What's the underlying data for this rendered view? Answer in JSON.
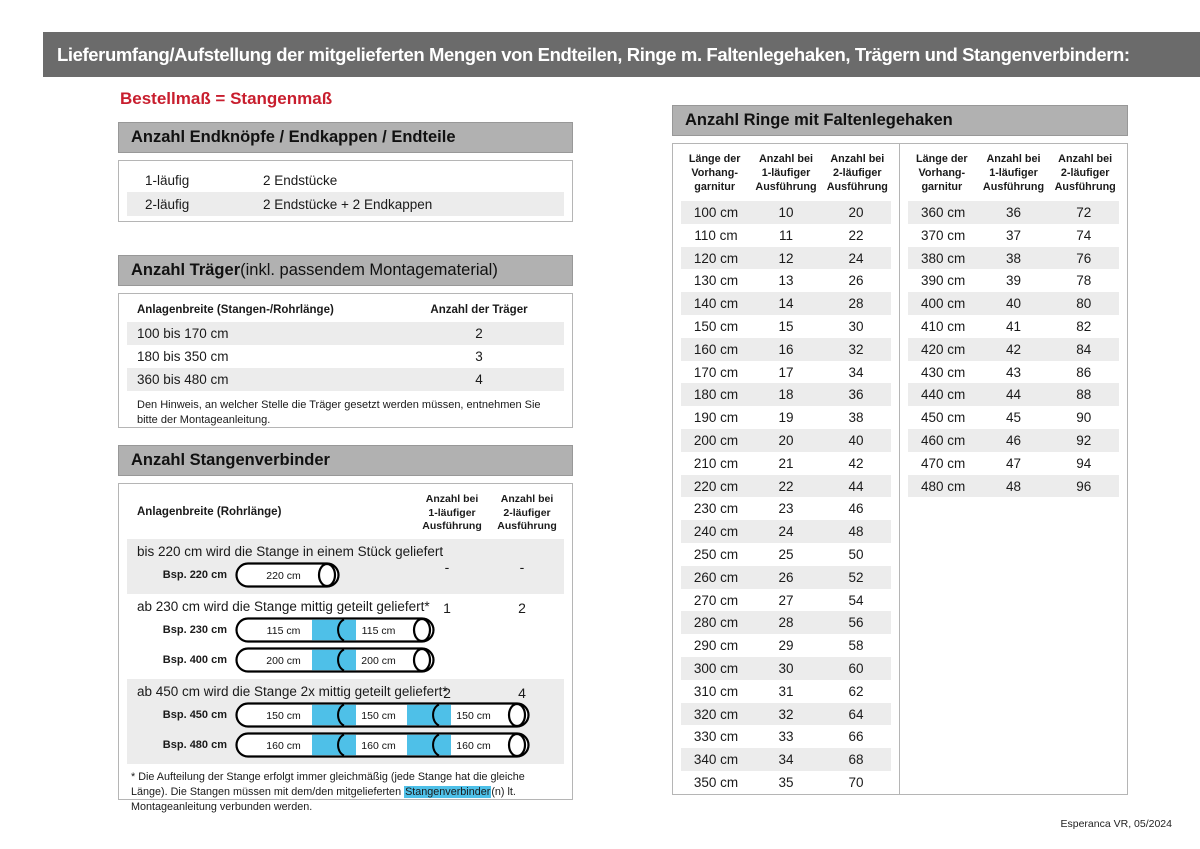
{
  "header": {
    "title": "Lieferumfang/Aufstellung der mitgelieferten Mengen von Endteilen, Ringe m. Faltenlegehaken, Trägern und Stangenverbindern:"
  },
  "subtitle": "Bestellmaß = Stangenmaß",
  "colors": {
    "topbar_gray": "#6b6b6b",
    "section_bar_gray": "#b1b1b1",
    "row_shading": "#ececec",
    "accent_red": "#c81e2e",
    "connector_blue": "#4ec0e8"
  },
  "end_pieces": {
    "title": "Anzahl Endknöpfe / Endkappen / Endteile",
    "rows": [
      {
        "label": "1-läufig",
        "value": "2 Endstücke"
      },
      {
        "label": "2-läufig",
        "value": "2 Endstücke + 2 Endkappen"
      }
    ]
  },
  "traeger": {
    "title_bold": "Anzahl Träger",
    "title_rest": " (inkl. passendem Montagematerial)",
    "col1": "Anlagenbreite (Stangen-/Rohrlänge)",
    "col2": "Anzahl der Träger",
    "rows": [
      {
        "range": "100 bis 170 cm",
        "count": "2"
      },
      {
        "range": "180 bis 350 cm",
        "count": "3"
      },
      {
        "range": "360 bis 480 cm",
        "count": "4"
      }
    ],
    "note": "Den Hinweis, an welcher Stelle die Träger gesetzt werden müssen, entnehmen Sie bitte der Montageanleitung."
  },
  "verbinder": {
    "title": "Anzahl Stangenverbinder",
    "col1": "Anlagenbreite (Rohrlänge)",
    "col_1l": [
      "Anzahl bei",
      "1-läufiger",
      "Ausführung"
    ],
    "col_2l": [
      "Anzahl bei",
      "2-läufiger",
      "Ausführung"
    ],
    "rows": [
      {
        "text": "bis 220 cm wird die Stange in einem Stück geliefert",
        "v1": "-",
        "v2": "-",
        "diagrams": [
          {
            "label": "Bsp. 220 cm",
            "segments": [
              "220 cm"
            ]
          }
        ]
      },
      {
        "text": "ab 230 cm wird die Stange mittig geteilt geliefert*",
        "v1": "1",
        "v2": "2",
        "diagrams": [
          {
            "label": "Bsp. 230 cm",
            "segments": [
              "115 cm",
              "115 cm"
            ]
          },
          {
            "label": "Bsp. 400 cm",
            "segments": [
              "200 cm",
              "200 cm"
            ]
          }
        ]
      },
      {
        "text": "ab 450 cm wird die Stange 2x mittig geteilt geliefert*",
        "v1": "2",
        "v2": "4",
        "diagrams": [
          {
            "label": "Bsp. 450 cm",
            "segments": [
              "150 cm",
              "150 cm",
              "150 cm"
            ]
          },
          {
            "label": "Bsp. 480 cm",
            "segments": [
              "160 cm",
              "160 cm",
              "160 cm"
            ]
          }
        ]
      }
    ],
    "footnote_parts": [
      "* Die Aufteilung der Stange erfolgt immer gleichmäßig (jede Stange hat die gleiche Länge). Die Stangen müssen mit dem/den mitgelieferten ",
      "Stangenverbinder",
      "(n) lt. Montageanleitung verbunden werden."
    ]
  },
  "ringe": {
    "title": "Anzahl Ringe mit Faltenlegehaken",
    "col_headers": [
      [
        "Länge der",
        "Vorhang-",
        "garnitur"
      ],
      [
        "Anzahl bei",
        "1-läufiger",
        "Ausführung"
      ],
      [
        "Anzahl bei",
        "2-läufiger",
        "Ausführung"
      ]
    ],
    "left_rows": [
      [
        "100 cm",
        "10",
        "20"
      ],
      [
        "110 cm",
        "11",
        "22"
      ],
      [
        "120 cm",
        "12",
        "24"
      ],
      [
        "130 cm",
        "13",
        "26"
      ],
      [
        "140 cm",
        "14",
        "28"
      ],
      [
        "150 cm",
        "15",
        "30"
      ],
      [
        "160 cm",
        "16",
        "32"
      ],
      [
        "170 cm",
        "17",
        "34"
      ],
      [
        "180 cm",
        "18",
        "36"
      ],
      [
        "190 cm",
        "19",
        "38"
      ],
      [
        "200 cm",
        "20",
        "40"
      ],
      [
        "210 cm",
        "21",
        "42"
      ],
      [
        "220 cm",
        "22",
        "44"
      ],
      [
        "230 cm",
        "23",
        "46"
      ],
      [
        "240 cm",
        "24",
        "48"
      ],
      [
        "250 cm",
        "25",
        "50"
      ],
      [
        "260 cm",
        "26",
        "52"
      ],
      [
        "270 cm",
        "27",
        "54"
      ],
      [
        "280 cm",
        "28",
        "56"
      ],
      [
        "290 cm",
        "29",
        "58"
      ],
      [
        "300 cm",
        "30",
        "60"
      ],
      [
        "310 cm",
        "31",
        "62"
      ],
      [
        "320 cm",
        "32",
        "64"
      ],
      [
        "330 cm",
        "33",
        "66"
      ],
      [
        "340 cm",
        "34",
        "68"
      ],
      [
        "350 cm",
        "35",
        "70"
      ]
    ],
    "right_rows": [
      [
        "360 cm",
        "36",
        "72"
      ],
      [
        "370 cm",
        "37",
        "74"
      ],
      [
        "380 cm",
        "38",
        "76"
      ],
      [
        "390 cm",
        "39",
        "78"
      ],
      [
        "400 cm",
        "40",
        "80"
      ],
      [
        "410 cm",
        "41",
        "82"
      ],
      [
        "420 cm",
        "42",
        "84"
      ],
      [
        "430 cm",
        "43",
        "86"
      ],
      [
        "440 cm",
        "44",
        "88"
      ],
      [
        "450 cm",
        "45",
        "90"
      ],
      [
        "460 cm",
        "46",
        "92"
      ],
      [
        "470 cm",
        "47",
        "94"
      ],
      [
        "480 cm",
        "48",
        "96"
      ]
    ]
  },
  "footer": "Esperanca VR, 05/2024"
}
